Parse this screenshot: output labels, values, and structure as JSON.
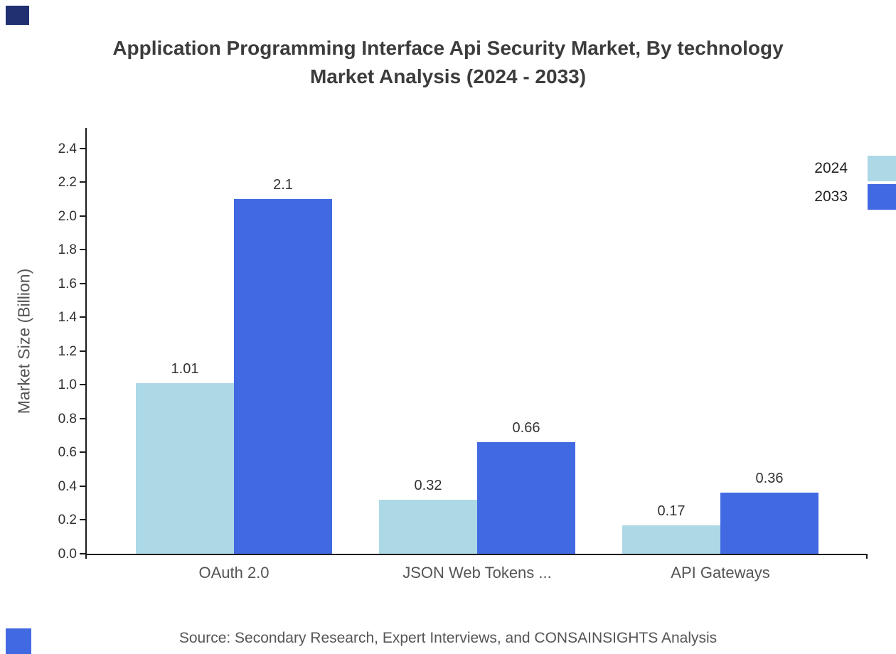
{
  "branding": {
    "top_square_color": "#203070",
    "bottom_square_color": "#4169e1"
  },
  "chart_data": {
    "type": "bar",
    "title": "Application Programming Interface Api Security Market, By technology Market Analysis (2024 - 2033)",
    "title_lines": [
      "Application Programming Interface Api Security Market, By technology",
      "Market Analysis (2024 - 2033)"
    ],
    "ylabel": "Market Size (Billion)",
    "xlabel": "",
    "categories": [
      "OAuth 2.0",
      "JSON Web Tokens ...",
      "API Gateways"
    ],
    "series": [
      {
        "name": "2024",
        "color": "#add8e6",
        "values": [
          1.01,
          0.32,
          0.17
        ]
      },
      {
        "name": "2033",
        "color": "#4169e1",
        "values": [
          2.1,
          0.66,
          0.36
        ]
      }
    ],
    "ylim": [
      0,
      2.52
    ],
    "yticks": [
      0.0,
      0.2,
      0.4,
      0.6,
      0.8,
      1.0,
      1.2,
      1.4,
      1.6,
      1.8,
      2.0,
      2.2,
      2.4
    ],
    "grid": false,
    "legend_position": "top-right",
    "source": "Source: Secondary Research, Expert Interviews, and CONSAINSIGHTS Analysis"
  }
}
